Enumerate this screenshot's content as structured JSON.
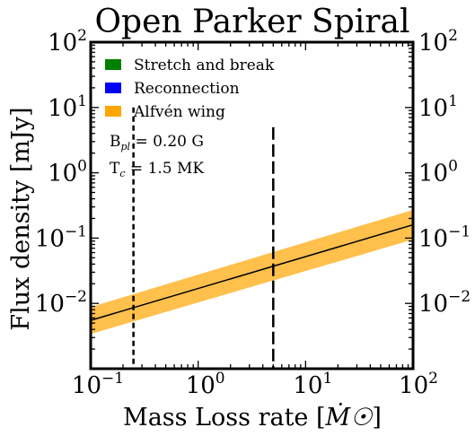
{
  "chart_data": {
    "type": "line",
    "title": "Open Parker Spiral",
    "xlabel": "Mass Loss rate",
    "xlabel_unit": "Ṁ☉",
    "ylabel": "Flux density [mJy]",
    "xscale": "log",
    "yscale": "log",
    "xlim": [
      0.1,
      100
    ],
    "ylim": [
      0.001,
      100
    ],
    "x_ticks": [
      {
        "base": "10",
        "exp": "−1",
        "value": 0.1
      },
      {
        "base": "10",
        "exp": "0",
        "value": 1
      },
      {
        "base": "10",
        "exp": "1",
        "value": 10
      },
      {
        "base": "10",
        "exp": "2",
        "value": 100
      }
    ],
    "y_ticks": [
      {
        "base": "10",
        "exp": "−2",
        "value": 0.01
      },
      {
        "base": "10",
        "exp": "−1",
        "value": 0.1
      },
      {
        "base": "10",
        "exp": "0",
        "value": 1
      },
      {
        "base": "10",
        "exp": "1",
        "value": 10
      },
      {
        "base": "10",
        "exp": "2",
        "value": 100
      }
    ],
    "legend_position": "upper-left",
    "legend": [
      {
        "label": "Stretch and break",
        "color": "#008000"
      },
      {
        "label": "Reconnection",
        "color": "#0000ff"
      },
      {
        "label": "Alfvén wing",
        "color": "#ffa500"
      }
    ],
    "annotations": {
      "bpl": {
        "prefix": "B",
        "sub": "pl",
        "text": " = 0.20 G"
      },
      "tc": {
        "prefix": "T",
        "sub": "c",
        "text": " = 1.5 MK"
      }
    },
    "series": [
      {
        "kind": "band",
        "legend_ref": "Alfvén wing",
        "color": "#ffa500",
        "x": [
          0.1,
          100
        ],
        "y_low": [
          0.0034,
          0.095
        ],
        "y_high": [
          0.0088,
          0.27
        ]
      },
      {
        "kind": "line",
        "color": "#000000",
        "x": [
          0.1,
          100
        ],
        "y": [
          0.0055,
          0.16
        ]
      }
    ],
    "vlines": [
      {
        "x": 0.25,
        "y_top": 10,
        "style": "dashed",
        "color": "#000000"
      },
      {
        "x": 5.0,
        "y_top": 5,
        "style": "long-dashed",
        "color": "#000000"
      }
    ]
  }
}
